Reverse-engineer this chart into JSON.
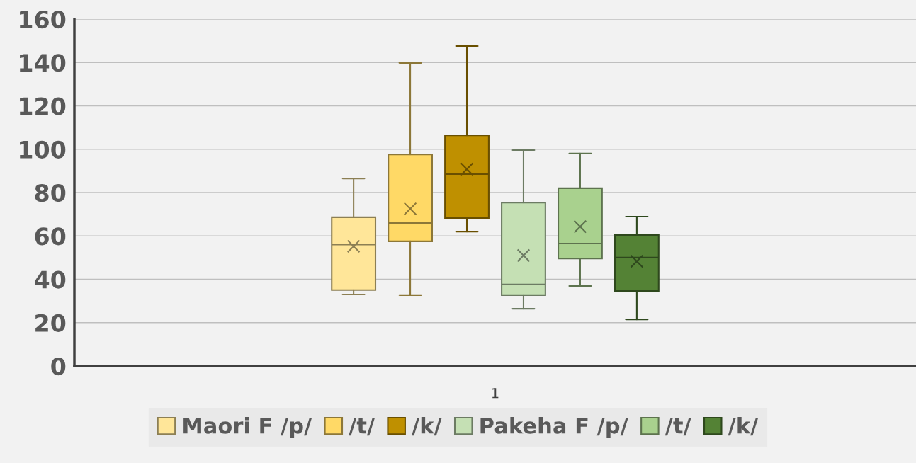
{
  "chart_data": {
    "type": "box",
    "categories": [
      "1"
    ],
    "ylim": [
      0,
      160
    ],
    "yticks": [
      0,
      20,
      40,
      60,
      80,
      100,
      120,
      140,
      160
    ],
    "grid": "y",
    "legend": "bottom",
    "marker": "cross",
    "series": [
      {
        "name": "Maori F /p/",
        "color": "#ffe699",
        "boxes": [
          {
            "low": 33,
            "q1": 35,
            "median": 56,
            "q3": 68.6,
            "high": 86.5,
            "mean": 55.2
          }
        ]
      },
      {
        "name": "/t/",
        "color": "#ffd966",
        "boxes": [
          {
            "low": 32.7,
            "q1": 57.5,
            "median": 66,
            "q3": 97.6,
            "high": 139.8,
            "mean": 72.5
          }
        ]
      },
      {
        "name": "/k/",
        "color": "#bf9000",
        "boxes": [
          {
            "low": 62,
            "q1": 68.2,
            "median": 88.5,
            "q3": 106.4,
            "high": 147.6,
            "mean": 90.8
          }
        ]
      },
      {
        "name": "Pakeha F /p/",
        "color": "#c5e0b4",
        "boxes": [
          {
            "low": 26.4,
            "q1": 32.7,
            "median": 37.6,
            "q3": 75.4,
            "high": 99.6,
            "mean": 51
          }
        ]
      },
      {
        "name": "/t/",
        "color": "#a9d18e",
        "boxes": [
          {
            "low": 36.9,
            "q1": 49.6,
            "median": 56.5,
            "q3": 82,
            "high": 98,
            "mean": 64.3
          }
        ]
      },
      {
        "name": "/k/",
        "color": "#548235",
        "boxes": [
          {
            "low": 21.5,
            "q1": 34.6,
            "median": 50,
            "q3": 60.4,
            "high": 68.9,
            "mean": 48.3
          }
        ]
      }
    ]
  }
}
